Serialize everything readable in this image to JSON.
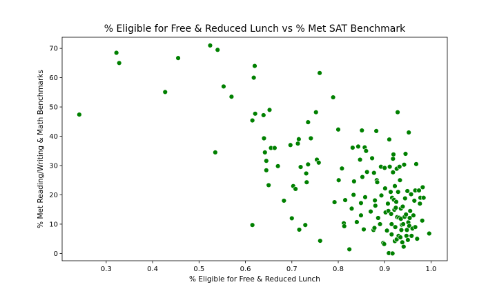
{
  "chart_data": {
    "type": "scatter",
    "title": "% Eligible for Free & Reduced Lunch vs % Met SAT Benchmark",
    "xlabel": "% Eligible for Free & Reduced Lunch",
    "ylabel": "% Met Reading/Writing & Math Benchmarks",
    "xlim": [
      0.205,
      1.035
    ],
    "ylim": [
      -2.5,
      73.8
    ],
    "xticks": [
      0.3,
      0.4,
      0.5,
      0.6,
      0.7,
      0.8,
      0.9,
      1.0
    ],
    "xtick_labels": [
      "0.3",
      "0.4",
      "0.5",
      "0.6",
      "0.7",
      "0.8",
      "0.9",
      "1.0"
    ],
    "yticks": [
      0,
      10,
      20,
      30,
      40,
      50,
      60,
      70
    ],
    "ytick_labels": [
      "0",
      "10",
      "20",
      "30",
      "40",
      "50",
      "60",
      "70"
    ],
    "grid": false,
    "marker_color": "#008000",
    "points": [
      [
        0.242,
        47.4
      ],
      [
        0.322,
        68.5
      ],
      [
        0.328,
        65.0
      ],
      [
        0.427,
        55.1
      ],
      [
        0.455,
        66.7
      ],
      [
        0.524,
        71.0
      ],
      [
        0.535,
        34.5
      ],
      [
        0.54,
        69.5
      ],
      [
        0.553,
        57.0
      ],
      [
        0.57,
        53.5
      ],
      [
        0.615,
        45.4
      ],
      [
        0.615,
        9.7
      ],
      [
        0.618,
        60.0
      ],
      [
        0.62,
        64.0
      ],
      [
        0.621,
        47.7
      ],
      [
        0.639,
        47.2
      ],
      [
        0.64,
        39.3
      ],
      [
        0.642,
        34.5
      ],
      [
        0.645,
        31.6
      ],
      [
        0.645,
        28.4
      ],
      [
        0.65,
        23.3
      ],
      [
        0.652,
        49.0
      ],
      [
        0.655,
        36.0
      ],
      [
        0.663,
        36.0
      ],
      [
        0.67,
        29.8
      ],
      [
        0.683,
        18.0
      ],
      [
        0.697,
        37.0
      ],
      [
        0.7,
        12.0
      ],
      [
        0.703,
        23.0
      ],
      [
        0.708,
        22.0
      ],
      [
        0.713,
        37.5
      ],
      [
        0.715,
        39.0
      ],
      [
        0.716,
        8.1
      ],
      [
        0.719,
        29.5
      ],
      [
        0.729,
        9.7
      ],
      [
        0.731,
        27.3
      ],
      [
        0.732,
        24.3
      ],
      [
        0.735,
        44.8
      ],
      [
        0.735,
        30.4
      ],
      [
        0.741,
        39.3
      ],
      [
        0.752,
        48.2
      ],
      [
        0.754,
        32.0
      ],
      [
        0.758,
        31.0
      ],
      [
        0.76,
        61.6
      ],
      [
        0.761,
        4.3
      ],
      [
        0.789,
        53.3
      ],
      [
        0.792,
        17.5
      ],
      [
        0.8,
        42.3
      ],
      [
        0.801,
        25.0
      ],
      [
        0.808,
        29.0
      ],
      [
        0.812,
        10.3
      ],
      [
        0.813,
        9.3
      ],
      [
        0.815,
        18.2
      ],
      [
        0.824,
        1.4
      ],
      [
        0.829,
        15.3
      ],
      [
        0.831,
        36.1
      ],
      [
        0.833,
        20.0
      ],
      [
        0.834,
        24.6
      ],
      [
        0.84,
        10.7
      ],
      [
        0.843,
        36.5
      ],
      [
        0.847,
        32.0
      ],
      [
        0.849,
        17.2
      ],
      [
        0.849,
        13.0
      ],
      [
        0.851,
        42.0
      ],
      [
        0.852,
        26.1
      ],
      [
        0.855,
        8.2
      ],
      [
        0.857,
        36.2
      ],
      [
        0.858,
        19.2
      ],
      [
        0.86,
        35.0
      ],
      [
        0.862,
        27.8
      ],
      [
        0.87,
        14.3
      ],
      [
        0.873,
        32.5
      ],
      [
        0.876,
        8.0
      ],
      [
        0.877,
        27.5
      ],
      [
        0.878,
        8.7
      ],
      [
        0.879,
        18.1
      ],
      [
        0.88,
        16.3
      ],
      [
        0.882,
        41.8
      ],
      [
        0.883,
        25.0
      ],
      [
        0.884,
        24.3
      ],
      [
        0.886,
        12.1
      ],
      [
        0.89,
        10.0
      ],
      [
        0.892,
        29.6
      ],
      [
        0.893,
        19.8
      ],
      [
        0.897,
        3.6
      ],
      [
        0.899,
        3.2
      ],
      [
        0.9,
        29.2
      ],
      [
        0.901,
        22.2
      ],
      [
        0.902,
        14.0
      ],
      [
        0.905,
        7.8
      ],
      [
        0.907,
        17.0
      ],
      [
        0.908,
        14.5
      ],
      [
        0.909,
        0.1
      ],
      [
        0.91,
        38.9
      ],
      [
        0.911,
        29.6
      ],
      [
        0.913,
        21.0
      ],
      [
        0.914,
        13.5
      ],
      [
        0.915,
        10.0
      ],
      [
        0.915,
        6.5
      ],
      [
        0.916,
        19.0
      ],
      [
        0.917,
        0.0
      ],
      [
        0.918,
        32.3
      ],
      [
        0.918,
        27.7
      ],
      [
        0.919,
        33.8
      ],
      [
        0.92,
        18.3
      ],
      [
        0.921,
        14.9
      ],
      [
        0.922,
        4.2
      ],
      [
        0.922,
        23.0
      ],
      [
        0.923,
        9.0
      ],
      [
        0.924,
        15.6
      ],
      [
        0.925,
        17.6
      ],
      [
        0.926,
        28.9
      ],
      [
        0.926,
        4.8
      ],
      [
        0.927,
        12.4
      ],
      [
        0.928,
        48.2
      ],
      [
        0.929,
        21.0
      ],
      [
        0.93,
        6.0
      ],
      [
        0.931,
        12.2
      ],
      [
        0.932,
        29.6
      ],
      [
        0.933,
        25.0
      ],
      [
        0.934,
        5.5
      ],
      [
        0.935,
        15.3
      ],
      [
        0.935,
        11.8
      ],
      [
        0.936,
        8.0
      ],
      [
        0.937,
        9.8
      ],
      [
        0.938,
        3.8
      ],
      [
        0.939,
        16.0
      ],
      [
        0.94,
        10.0
      ],
      [
        0.941,
        2.3
      ],
      [
        0.942,
        30.3
      ],
      [
        0.943,
        12.5
      ],
      [
        0.944,
        18.8
      ],
      [
        0.945,
        34.0
      ],
      [
        0.946,
        13.3
      ],
      [
        0.947,
        6.0
      ],
      [
        0.948,
        8.0
      ],
      [
        0.949,
        21.3
      ],
      [
        0.95,
        4.6
      ],
      [
        0.951,
        10.6
      ],
      [
        0.952,
        41.3
      ],
      [
        0.953,
        9.4
      ],
      [
        0.954,
        12.1
      ],
      [
        0.955,
        14.5
      ],
      [
        0.957,
        20.2
      ],
      [
        0.958,
        6.0
      ],
      [
        0.96,
        8.5
      ],
      [
        0.962,
        13.0
      ],
      [
        0.964,
        18.0
      ],
      [
        0.966,
        21.5
      ],
      [
        0.966,
        9.0
      ],
      [
        0.968,
        30.5
      ],
      [
        0.97,
        5.0
      ],
      [
        0.974,
        21.5
      ],
      [
        0.976,
        17.0
      ],
      [
        0.977,
        19.0
      ],
      [
        0.981,
        11.2
      ],
      [
        0.982,
        22.6
      ],
      [
        0.984,
        19.0
      ],
      [
        0.996,
        6.8
      ]
    ]
  }
}
